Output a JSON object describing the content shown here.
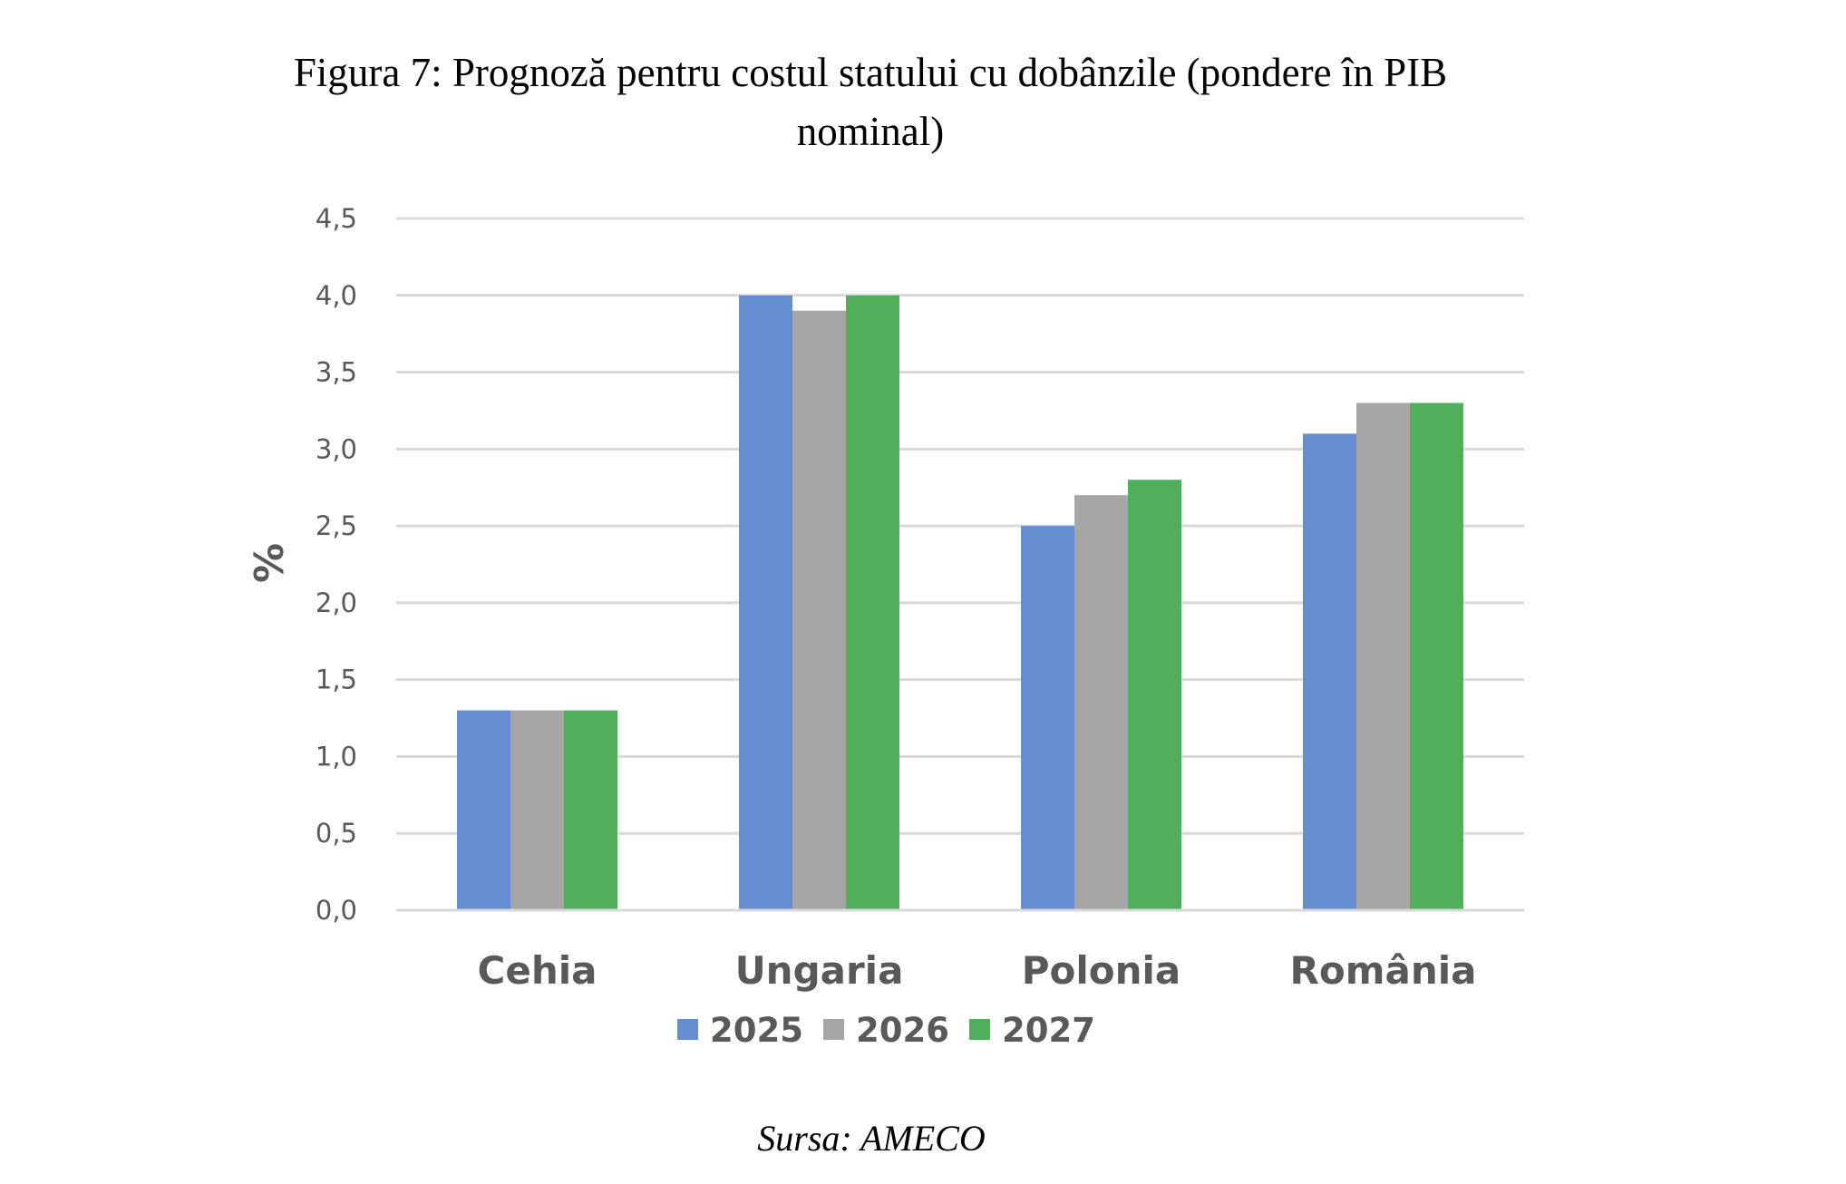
{
  "chart_data": {
    "type": "bar",
    "title": "Figura 7: Prognoză pentru costul statului cu dobânzile (pondere în PIB nominal)",
    "title_lines": [
      "Figura 7: Prognoză pentru costul statului cu dobânzile (pondere în PIB",
      "nominal)"
    ],
    "ylabel": "%",
    "xlabel": "",
    "ylim": [
      0,
      4.5
    ],
    "yticks": [
      "0,0",
      "0,5",
      "1,0",
      "1,5",
      "2,0",
      "2,5",
      "3,0",
      "3,5",
      "4,0",
      "4,5"
    ],
    "grid": true,
    "legend_position": "bottom",
    "categories": [
      "Cehia",
      "Ungaria",
      "Polonia",
      "România"
    ],
    "series": [
      {
        "name": "2025",
        "color": "#658ed0",
        "values": [
          1.3,
          4.0,
          2.5,
          3.1
        ]
      },
      {
        "name": "2026",
        "color": "#a6a6a6",
        "values": [
          1.3,
          3.9,
          2.7,
          3.3
        ]
      },
      {
        "name": "2027",
        "color": "#51ae5b",
        "values": [
          1.3,
          4.0,
          2.8,
          3.3
        ]
      }
    ],
    "source": "Sursa: AMECO"
  }
}
